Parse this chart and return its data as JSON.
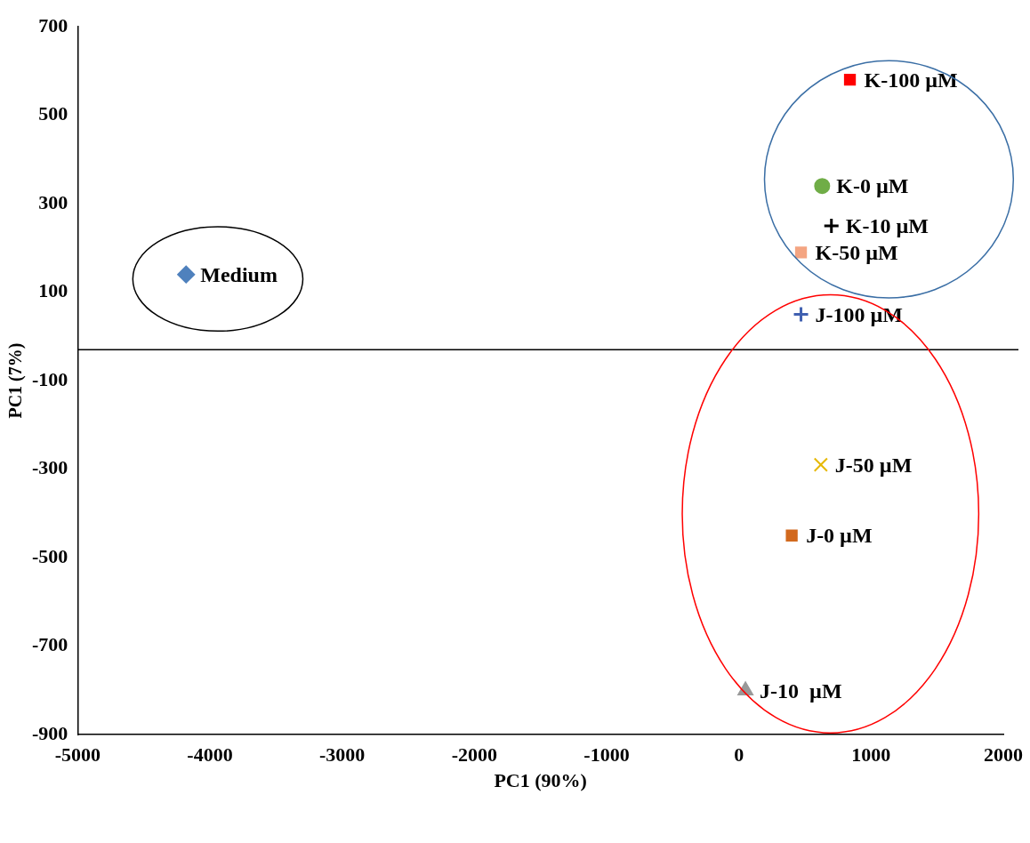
{
  "chart_data": {
    "type": "scatter",
    "xlabel": "PC1 (90%)",
    "ylabel": "PC1 (7%)",
    "xlim": [
      -5000,
      2000
    ],
    "xticks": [
      -5000,
      -4000,
      -3000,
      -2000,
      -1000,
      0,
      1000,
      2000
    ],
    "ylim": [
      -900,
      700
    ],
    "yticks": [
      -900,
      -700,
      -500,
      -300,
      -100,
      100,
      300,
      500,
      700
    ],
    "grid": false,
    "legend": false,
    "ref_lines": [
      {
        "axis": "y",
        "value": -30,
        "color": "#000000"
      }
    ],
    "series": [
      {
        "name": "Medium",
        "color": "#4f81bd",
        "marker": "diamond",
        "x": [
          -4180
        ],
        "values": [
          140
        ]
      },
      {
        "name": "K-100 µM",
        "color": "#ff0000",
        "marker": "square",
        "x": [
          840
        ],
        "values": [
          580
        ]
      },
      {
        "name": "K-0 µM",
        "color": "#70ad47",
        "marker": "circle",
        "x": [
          630
        ],
        "values": [
          340
        ]
      },
      {
        "name": "K-10 µM",
        "color": "#000000",
        "marker": "cross",
        "x": [
          700
        ],
        "values": [
          250
        ]
      },
      {
        "name": "K-50 µM",
        "color": "#f4a582",
        "marker": "square",
        "x": [
          470
        ],
        "values": [
          190
        ]
      },
      {
        "name": "J-100 µM",
        "color": "#4060b0",
        "marker": "cross",
        "x": [
          470
        ],
        "values": [
          50
        ]
      },
      {
        "name": "J-50 µM",
        "color": "#e6b800",
        "marker": "x",
        "x": [
          620
        ],
        "values": [
          -290
        ]
      },
      {
        "name": "J-0 µM",
        "color": "#d2691e",
        "marker": "square",
        "x": [
          400
        ],
        "values": [
          -450
        ]
      },
      {
        "name": "J-10  µM",
        "color": "#999999",
        "marker": "triangle",
        "x": [
          50
        ],
        "values": [
          -800
        ]
      }
    ]
  }
}
